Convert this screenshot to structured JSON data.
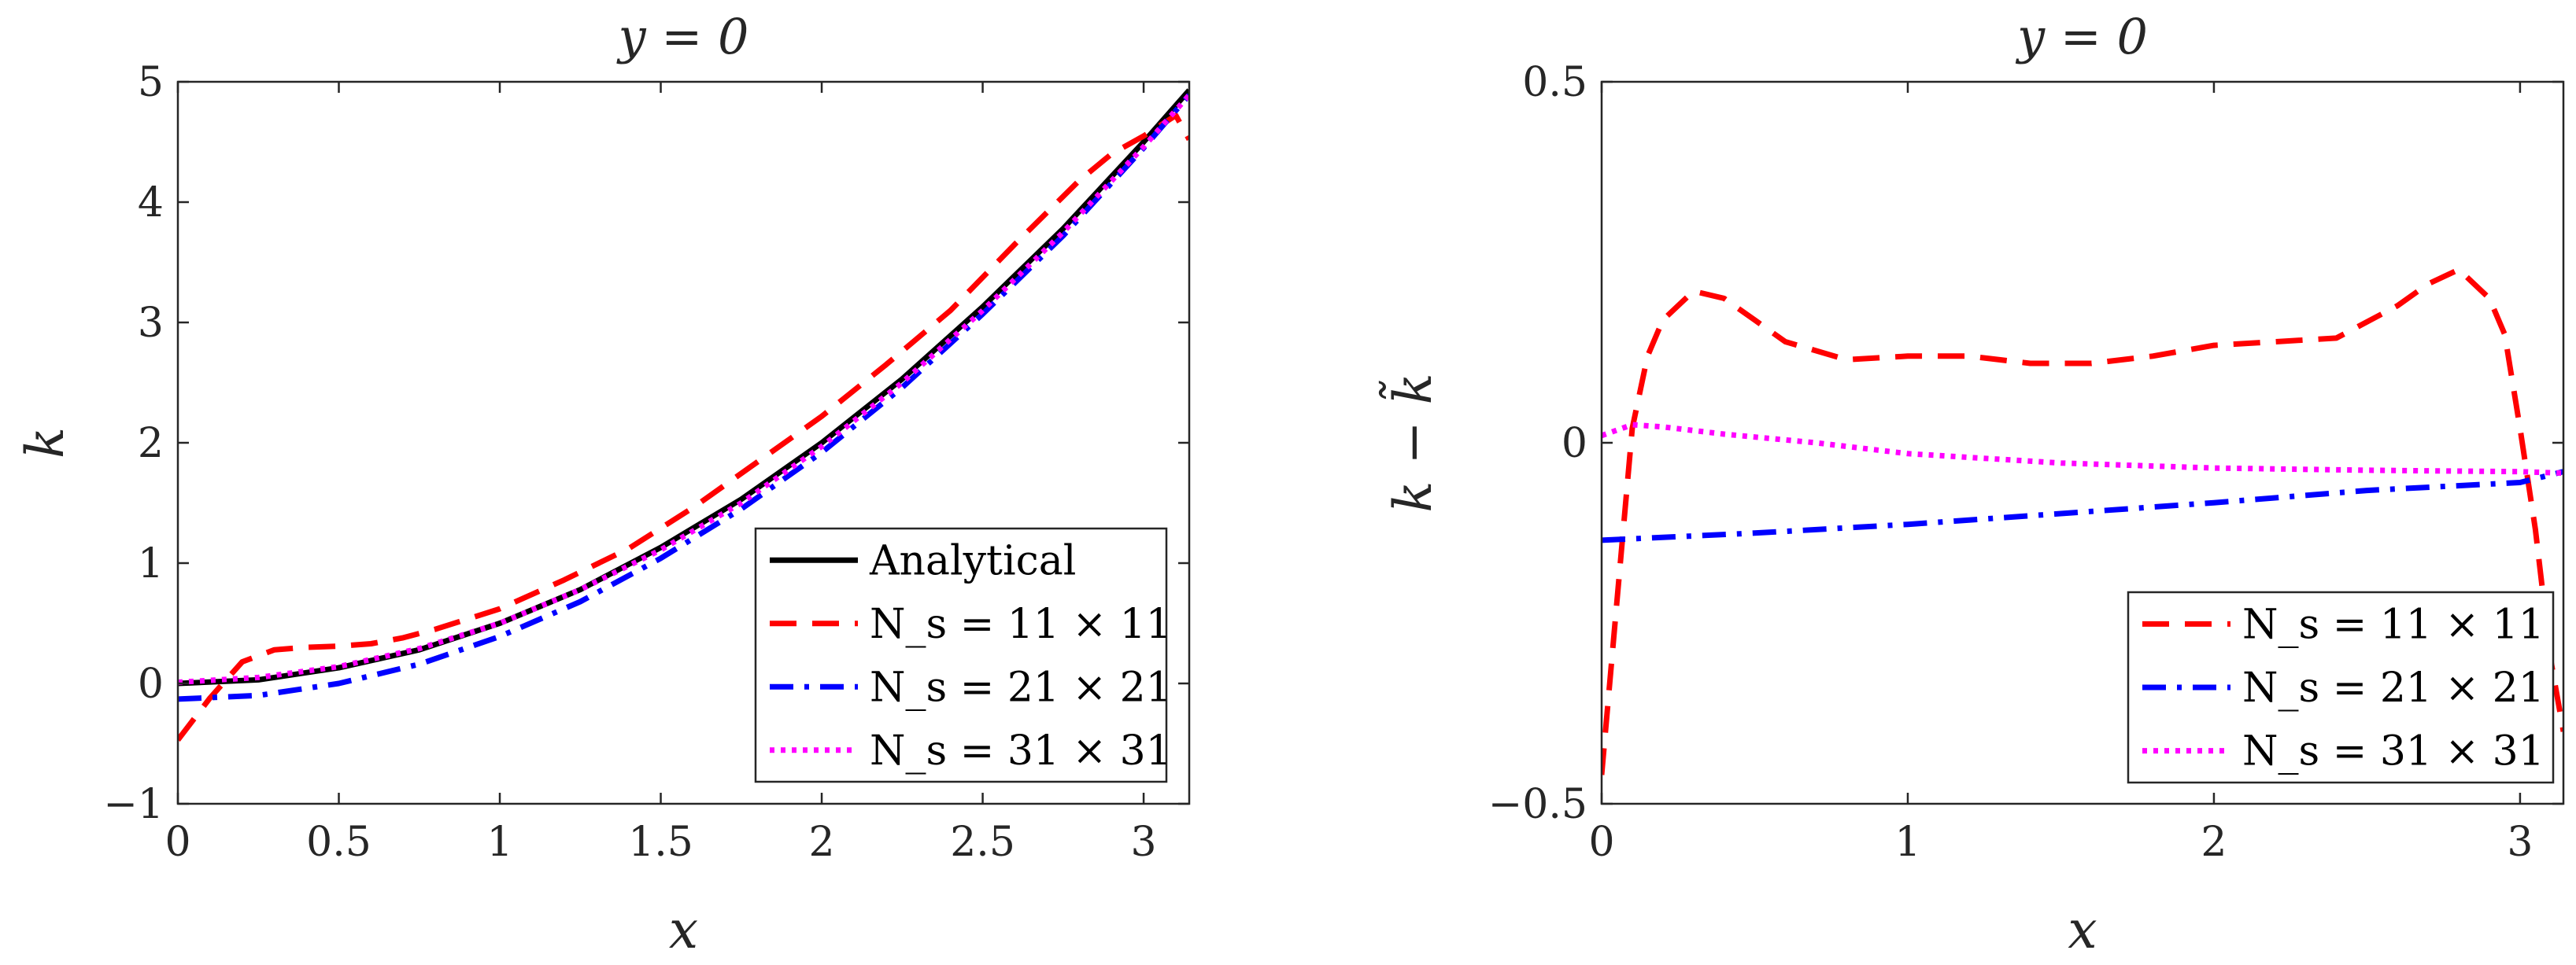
{
  "chart_data": [
    {
      "type": "line",
      "title": "y = 0",
      "xlabel": "x",
      "ylabel": "k",
      "xlim": [
        0,
        3.1416
      ],
      "ylim": [
        -1,
        5
      ],
      "xticks": [
        0,
        0.5,
        1,
        1.5,
        2,
        2.5,
        3
      ],
      "xtick_labels": [
        "0",
        "0.5",
        "1",
        "1.5",
        "2",
        "2.5",
        "3"
      ],
      "yticks": [
        -1,
        0,
        1,
        2,
        3,
        4,
        5
      ],
      "ytick_labels": [
        "−1",
        "0",
        "1",
        "2",
        "3",
        "4",
        "5"
      ],
      "legend_position": "bottom-right",
      "series": [
        {
          "name": "Analytical",
          "style": "solid",
          "color": "#000000",
          "x": [
            0,
            0.25,
            0.5,
            0.75,
            1.0,
            1.25,
            1.5,
            1.75,
            2.0,
            2.25,
            2.5,
            2.75,
            3.0,
            3.1416
          ],
          "y": [
            0,
            0.03,
            0.13,
            0.28,
            0.5,
            0.78,
            1.13,
            1.53,
            2.0,
            2.53,
            3.13,
            3.78,
            4.5,
            4.93
          ]
        },
        {
          "name": "N_s = 11 × 11",
          "style": "dashed",
          "color": "#ff0000",
          "x": [
            0,
            0.1,
            0.2,
            0.3,
            0.4,
            0.5,
            0.6,
            0.7,
            0.8,
            1.0,
            1.2,
            1.4,
            1.6,
            1.8,
            2.0,
            2.2,
            2.4,
            2.6,
            2.8,
            2.9,
            3.0,
            3.1,
            3.1416
          ],
          "y": [
            -0.47,
            -0.12,
            0.18,
            0.28,
            0.3,
            0.31,
            0.33,
            0.38,
            0.45,
            0.62,
            0.86,
            1.12,
            1.46,
            1.84,
            2.22,
            2.65,
            3.1,
            3.65,
            4.18,
            4.4,
            4.55,
            4.72,
            4.52
          ]
        },
        {
          "name": "N_s = 21 × 21",
          "style": "dashdot",
          "color": "#0000ff",
          "x": [
            0,
            0.25,
            0.5,
            0.75,
            1.0,
            1.25,
            1.5,
            1.75,
            2.0,
            2.25,
            2.5,
            2.75,
            3.0,
            3.1416
          ],
          "y": [
            -0.13,
            -0.1,
            0.0,
            0.16,
            0.39,
            0.68,
            1.04,
            1.45,
            1.92,
            2.46,
            3.07,
            3.72,
            4.45,
            4.89
          ]
        },
        {
          "name": "N_s = 31 × 31",
          "style": "dotted",
          "color": "#ff00ff",
          "x": [
            0,
            0.25,
            0.5,
            0.75,
            1.0,
            1.25,
            1.5,
            1.75,
            2.0,
            2.25,
            2.5,
            2.75,
            3.0,
            3.1416
          ],
          "y": [
            0.01,
            0.05,
            0.14,
            0.29,
            0.5,
            0.78,
            1.11,
            1.5,
            1.97,
            2.5,
            3.1,
            3.75,
            4.46,
            4.89
          ]
        }
      ]
    },
    {
      "type": "line",
      "title": "y = 0",
      "xlabel": "x",
      "ylabel": "k − k̃",
      "xlim": [
        0,
        3.1416
      ],
      "ylim": [
        -0.5,
        0.5
      ],
      "xticks": [
        0,
        1,
        2,
        3
      ],
      "xtick_labels": [
        "0",
        "1",
        "2",
        "3"
      ],
      "yticks": [
        -0.5,
        0,
        0.5
      ],
      "ytick_labels": [
        "−0.5",
        "0",
        "0.5"
      ],
      "legend_position": "bottom-right",
      "series": [
        {
          "name": "N_s = 11 × 11",
          "style": "dashed",
          "color": "#ff0000",
          "x": [
            0,
            0.05,
            0.1,
            0.15,
            0.2,
            0.3,
            0.4,
            0.5,
            0.6,
            0.8,
            1.0,
            1.2,
            1.4,
            1.6,
            1.8,
            2.0,
            2.2,
            2.4,
            2.6,
            2.7,
            2.8,
            2.9,
            2.95,
            3.0,
            3.05,
            3.1,
            3.1416
          ],
          "y": [
            -0.46,
            -0.22,
            0.02,
            0.12,
            0.17,
            0.21,
            0.2,
            0.17,
            0.14,
            0.115,
            0.12,
            0.12,
            0.11,
            0.11,
            0.12,
            0.135,
            0.14,
            0.145,
            0.19,
            0.22,
            0.24,
            0.2,
            0.15,
            0.02,
            -0.12,
            -0.3,
            -0.4
          ]
        },
        {
          "name": "N_s = 21 × 21",
          "style": "dashdot",
          "color": "#0000ff",
          "x": [
            0,
            0.5,
            1.0,
            1.5,
            2.0,
            2.5,
            3.0,
            3.1416
          ],
          "y": [
            -0.135,
            -0.125,
            -0.113,
            -0.098,
            -0.083,
            -0.066,
            -0.055,
            -0.04
          ]
        },
        {
          "name": "N_s = 31 × 31",
          "style": "dotted",
          "color": "#ff00ff",
          "x": [
            0,
            0.1,
            0.2,
            0.4,
            0.7,
            1.0,
            1.5,
            2.0,
            2.5,
            3.0,
            3.1416
          ],
          "y": [
            0.01,
            0.025,
            0.022,
            0.012,
            0.0,
            -0.015,
            -0.028,
            -0.035,
            -0.038,
            -0.04,
            -0.042
          ]
        }
      ]
    }
  ]
}
